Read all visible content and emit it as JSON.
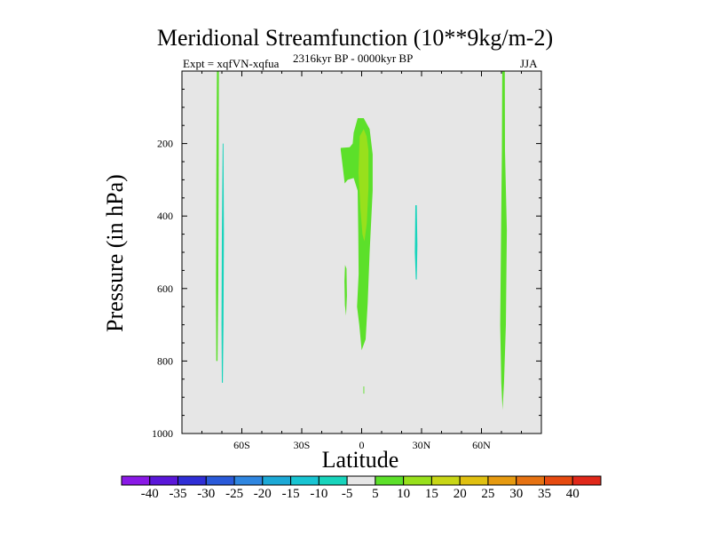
{
  "chart_data": {
    "type": "contour",
    "title": "Meridional Streamfunction (10**9kg/m-2)",
    "subtitle": "2316kyr BP - 0000kyr BP",
    "left_label": "Expt = xqfVN-xqfua",
    "right_label": "JJA",
    "xlabel": "Latitude",
    "ylabel": "Pressure (in hPa)",
    "xlim": [
      -90,
      90
    ],
    "ylim": [
      1000,
      0
    ],
    "x_ticks": [
      {
        "value": -60,
        "label": "60S"
      },
      {
        "value": -30,
        "label": "30S"
      },
      {
        "value": 0,
        "label": "0"
      },
      {
        "value": 30,
        "label": "30N"
      },
      {
        "value": 60,
        "label": "60N"
      }
    ],
    "y_ticks": [
      {
        "value": 200,
        "label": "200"
      },
      {
        "value": 400,
        "label": "400"
      },
      {
        "value": 600,
        "label": "600"
      },
      {
        "value": 800,
        "label": "800"
      },
      {
        "value": 1000,
        "label": "1000"
      }
    ],
    "background_color": "#e6e6e6",
    "colorbar": {
      "levels": [
        "-40",
        "-35",
        "-30",
        "-25",
        "-20",
        "-15",
        "-10",
        "-5",
        "5",
        "10",
        "15",
        "20",
        "25",
        "30",
        "35",
        "40"
      ],
      "colors": [
        "#8a19e6",
        "#5a17d9",
        "#2f2ed6",
        "#2a5ad9",
        "#2f86e0",
        "#1ca9d6",
        "#18c4d2",
        "#18d4bc",
        "#e6e6e6",
        "#5ce02a",
        "#98e01c",
        "#c8d616",
        "#e0c010",
        "#e69a10",
        "#e67212",
        "#e64a10",
        "#e0281a"
      ]
    },
    "regions": [
      {
        "name": "positive-5-10-sh-polar-column",
        "level_index": 9,
        "points": [
          [
            -72.5,
            0
          ],
          [
            -71.5,
            0
          ],
          [
            -71.6,
            300
          ],
          [
            -71.8,
            600
          ],
          [
            -72.2,
            800
          ],
          [
            -72.8,
            800
          ],
          [
            -73,
            600
          ],
          [
            -72.8,
            300
          ]
        ]
      },
      {
        "name": "negative-5-10-sh-polar-column",
        "level_index": 7,
        "points": [
          [
            -69.6,
            200
          ],
          [
            -69.2,
            200
          ],
          [
            -69,
            450
          ],
          [
            -69.2,
            700
          ],
          [
            -69.5,
            860
          ],
          [
            -70,
            860
          ],
          [
            -70.2,
            700
          ],
          [
            -70,
            450
          ]
        ]
      },
      {
        "name": "positive-5-10-equatorial-cell",
        "level_index": 9,
        "points": [
          [
            -2,
            130
          ],
          [
            1,
            130
          ],
          [
            4,
            160
          ],
          [
            5.5,
            230
          ],
          [
            5.5,
            330
          ],
          [
            4,
            500
          ],
          [
            3,
            640
          ],
          [
            2,
            740
          ],
          [
            0,
            770
          ],
          [
            -1.2,
            700
          ],
          [
            -2.3,
            650
          ],
          [
            -1.5,
            560
          ],
          [
            -1.7,
            450
          ],
          [
            -2,
            330
          ],
          [
            -4,
            295
          ],
          [
            -7,
            300
          ],
          [
            -8.5,
            310
          ],
          [
            -9.8,
            250
          ],
          [
            -10.5,
            218
          ],
          [
            -10.5,
            212
          ],
          [
            -6,
            210
          ],
          [
            -4.5,
            200
          ],
          [
            -4,
            170
          ]
        ]
      },
      {
        "name": "positive-10-15-equatorial-core",
        "level_index": 10,
        "points": [
          [
            -1,
            180
          ],
          [
            1,
            160
          ],
          [
            2.5,
            180
          ],
          [
            3.4,
            220
          ],
          [
            3.4,
            320
          ],
          [
            2.6,
            420
          ],
          [
            1.4,
            470
          ],
          [
            0.4,
            450
          ],
          [
            -0.6,
            380
          ],
          [
            -1.6,
            280
          ]
        ]
      },
      {
        "name": "positive-5-10-small-sh-patch",
        "level_index": 9,
        "points": [
          [
            -8.3,
            535
          ],
          [
            -7.6,
            545
          ],
          [
            -7.4,
            620
          ],
          [
            -7.8,
            675
          ],
          [
            -8.4,
            645
          ],
          [
            -8.6,
            580
          ]
        ]
      },
      {
        "name": "positive-5-10-dot-near-equator",
        "level_index": 9,
        "points": [
          [
            0.9,
            870
          ],
          [
            1.3,
            870
          ],
          [
            1.3,
            890
          ],
          [
            0.9,
            890
          ]
        ]
      },
      {
        "name": "negative-5-10-nh-column",
        "level_index": 7,
        "points": [
          [
            26.9,
            370
          ],
          [
            27.6,
            370
          ],
          [
            27.9,
            480
          ],
          [
            27.6,
            575
          ],
          [
            27.1,
            575
          ],
          [
            26.6,
            500
          ]
        ]
      },
      {
        "name": "positive-5-10-nh-polar-column",
        "level_index": 9,
        "points": [
          [
            70.4,
            0
          ],
          [
            71.7,
            0
          ],
          [
            71.8,
            220
          ],
          [
            72.7,
            440
          ],
          [
            72.2,
            700
          ],
          [
            71.3,
            860
          ],
          [
            70.6,
            935
          ],
          [
            69.9,
            860
          ],
          [
            69.4,
            700
          ],
          [
            69.8,
            440
          ],
          [
            70.2,
            220
          ]
        ]
      }
    ]
  }
}
